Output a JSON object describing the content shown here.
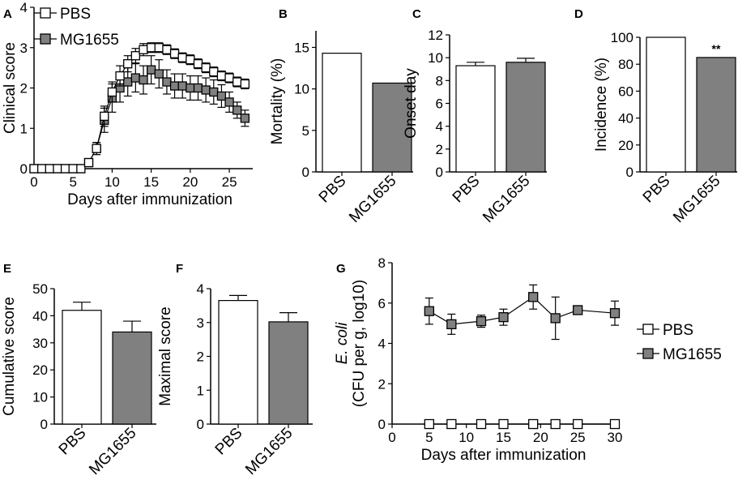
{
  "colors": {
    "pbs": "#ffffff",
    "mg1655": "#808080",
    "stroke": "#000000"
  },
  "chart_data": [
    {
      "panel": "A",
      "type": "line",
      "xlabel": "Days after immunization",
      "ylabel": "Clinical score",
      "xlim": [
        0,
        28
      ],
      "ylim": [
        0,
        4
      ],
      "xticks": [
        0,
        5,
        10,
        15,
        20,
        25
      ],
      "yticks": [
        0,
        1,
        2,
        3,
        4
      ],
      "legend": [
        "PBS",
        "MG1655"
      ],
      "series": [
        {
          "name": "PBS",
          "x": [
            0,
            1,
            2,
            3,
            4,
            5,
            6,
            7,
            8,
            9,
            10,
            11,
            12,
            13,
            14,
            15,
            16,
            17,
            18,
            19,
            20,
            21,
            22,
            23,
            24,
            25,
            26,
            27
          ],
          "y": [
            0,
            0,
            0,
            0,
            0,
            0,
            0,
            0.15,
            0.5,
            1.3,
            1.9,
            2.3,
            2.6,
            2.8,
            2.95,
            3.0,
            3.0,
            2.95,
            2.85,
            2.75,
            2.7,
            2.6,
            2.5,
            2.4,
            2.3,
            2.25,
            2.15,
            2.1
          ],
          "err": [
            0,
            0,
            0,
            0,
            0,
            0,
            0,
            0.05,
            0.15,
            0.25,
            0.25,
            0.25,
            0.2,
            0.18,
            0.15,
            0.12,
            0.12,
            0.12,
            0.12,
            0.12,
            0.12,
            0.12,
            0.12,
            0.12,
            0.12,
            0.12,
            0.12,
            0.12
          ]
        },
        {
          "name": "MG1655",
          "x": [
            0,
            1,
            2,
            3,
            4,
            5,
            6,
            7,
            8,
            9,
            10,
            11,
            12,
            13,
            14,
            15,
            16,
            17,
            18,
            19,
            20,
            21,
            22,
            23,
            24,
            25,
            26,
            27
          ],
          "y": [
            0,
            0,
            0,
            0,
            0,
            0,
            0,
            0.15,
            0.5,
            1.2,
            1.75,
            2.0,
            2.15,
            2.25,
            2.2,
            2.45,
            2.35,
            2.15,
            2.05,
            2.05,
            2.0,
            2.0,
            1.95,
            1.9,
            1.8,
            1.65,
            1.45,
            1.25
          ],
          "err": [
            0,
            0,
            0,
            0,
            0,
            0,
            0,
            0.05,
            0.15,
            0.3,
            0.35,
            0.35,
            0.35,
            0.35,
            0.35,
            0.35,
            0.35,
            0.3,
            0.3,
            0.3,
            0.3,
            0.3,
            0.3,
            0.3,
            0.28,
            0.25,
            0.2,
            0.2
          ]
        }
      ]
    },
    {
      "panel": "B",
      "type": "bar",
      "ylabel": "Mortality (%)",
      "ylim": [
        0,
        17
      ],
      "yticks": [
        0,
        5,
        10,
        15
      ],
      "categories": [
        "PBS",
        "MG1655"
      ],
      "values": [
        14.3,
        10.7
      ],
      "errors": [
        0,
        0
      ]
    },
    {
      "panel": "C",
      "type": "bar",
      "ylabel": "Onset day",
      "ylim": [
        0,
        12
      ],
      "yticks": [
        0,
        2,
        4,
        6,
        8,
        10,
        12
      ],
      "categories": [
        "PBS",
        "MG1655"
      ],
      "values": [
        9.3,
        9.6
      ],
      "errors": [
        0.3,
        0.35
      ]
    },
    {
      "panel": "D",
      "type": "bar",
      "ylabel": "Incidence (%)",
      "ylim": [
        0,
        100
      ],
      "yticks": [
        0,
        20,
        40,
        60,
        80,
        100
      ],
      "categories": [
        "PBS",
        "MG1655"
      ],
      "values": [
        100,
        85
      ],
      "errors": [
        0,
        0
      ],
      "annotation": "**"
    },
    {
      "panel": "E",
      "type": "bar",
      "ylabel": "Cumulative score",
      "ylim": [
        0,
        50
      ],
      "yticks": [
        0,
        10,
        20,
        30,
        40,
        50
      ],
      "categories": [
        "PBS",
        "MG1655"
      ],
      "values": [
        42,
        34
      ],
      "errors": [
        3,
        4
      ]
    },
    {
      "panel": "F",
      "type": "bar",
      "ylabel": "Maximal score",
      "ylim": [
        0,
        4
      ],
      "yticks": [
        0,
        1,
        2,
        3,
        4
      ],
      "categories": [
        "PBS",
        "MG1655"
      ],
      "values": [
        3.65,
        3.02
      ],
      "errors": [
        0.15,
        0.27
      ]
    },
    {
      "panel": "G",
      "type": "line",
      "xlabel": "Days after immunization",
      "ylabel": "E. coli",
      "ylabel2": "(CFU per g, log10)",
      "xlim": [
        0,
        30
      ],
      "ylim": [
        0,
        8
      ],
      "xticks": [
        0,
        5,
        10,
        15,
        20,
        25,
        30
      ],
      "yticks": [
        0,
        2,
        4,
        6,
        8
      ],
      "legend": [
        "PBS",
        "MG1655"
      ],
      "series": [
        {
          "name": "PBS",
          "x": [
            5,
            8,
            12,
            15,
            19,
            22,
            25,
            30
          ],
          "y": [
            0,
            0,
            0,
            0,
            0,
            0,
            0,
            0
          ],
          "err": [
            0,
            0,
            0,
            0,
            0,
            0,
            0,
            0
          ]
        },
        {
          "name": "MG1655",
          "x": [
            5,
            8,
            12,
            15,
            19,
            22,
            25,
            30
          ],
          "y": [
            5.6,
            4.95,
            5.1,
            5.3,
            6.3,
            5.25,
            5.65,
            5.5
          ],
          "err": [
            0.65,
            0.5,
            0.3,
            0.4,
            0.6,
            1.05,
            0.15,
            0.6
          ]
        }
      ]
    }
  ]
}
